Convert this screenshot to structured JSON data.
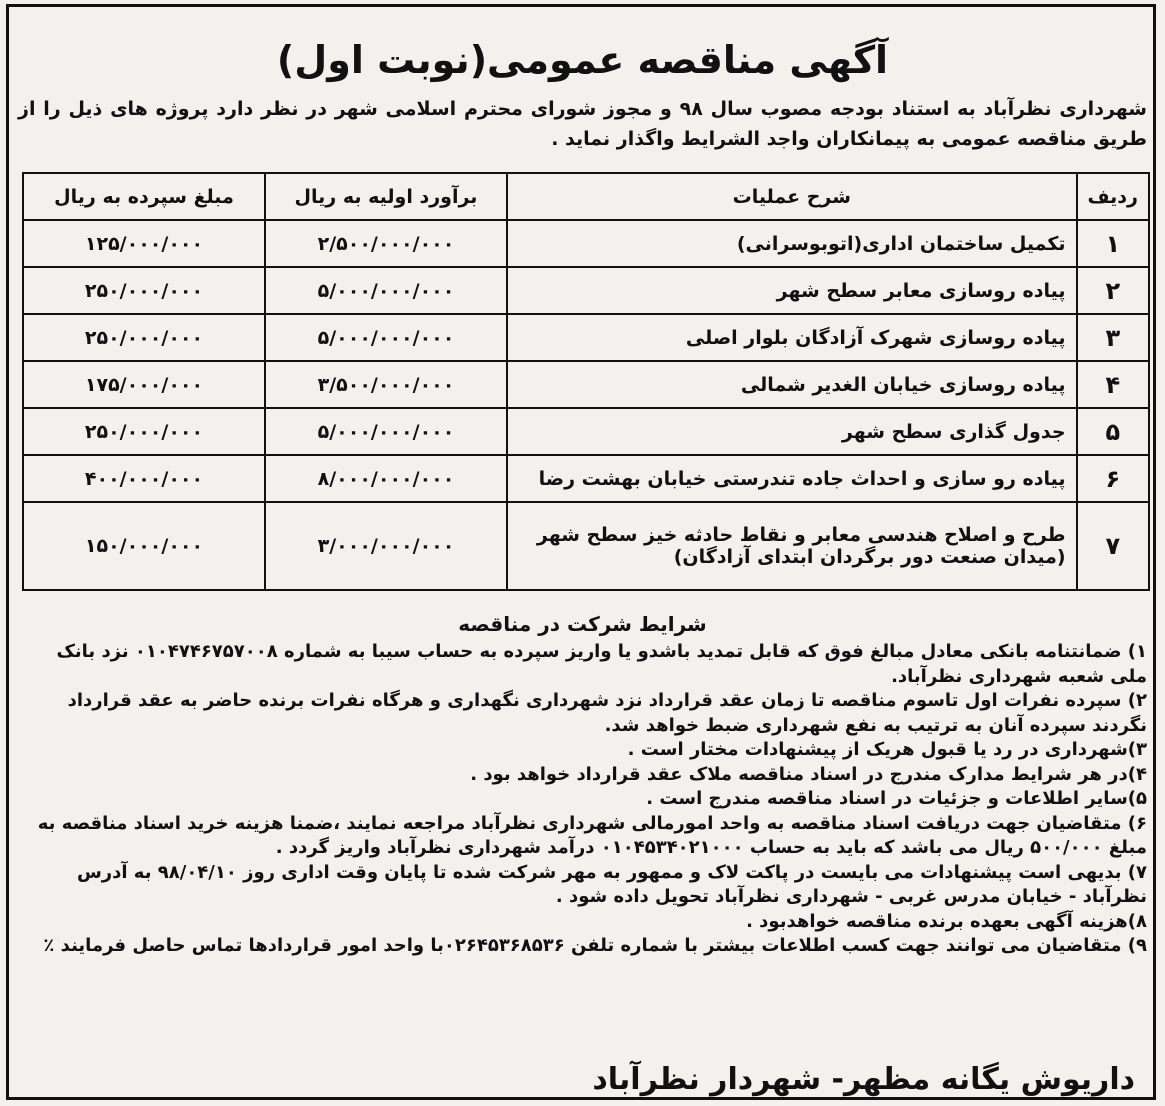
{
  "title": "آگهی مناقصه عمومی(نوبت اول)",
  "intro": "شهرداری نظرآباد به استناد بودجه مصوب سال ۹۸ و مجوز شورای محترم اسلامی شهر در نظر دارد پروژه های ذیل را از طریق مناقصه عمومی به پیمانکاران واجد الشرایط واگذار نماید .",
  "table": {
    "headers": [
      "ردیف",
      "شرح عملیات",
      "برآورد اولیه به ریال",
      "مبلغ سپرده به ریال"
    ],
    "rows": [
      {
        "idx": "۱",
        "desc": "تکمیل ساختمان اداری(اتوبوسرانی)",
        "estimate": "۲/۵۰۰/۰۰۰/۰۰۰",
        "deposit": "۱۲۵/۰۰۰/۰۰۰"
      },
      {
        "idx": "۲",
        "desc": "پیاده روسازی معابر سطح شهر",
        "estimate": "۵/۰۰۰/۰۰۰/۰۰۰",
        "deposit": "۲۵۰/۰۰۰/۰۰۰"
      },
      {
        "idx": "۳",
        "desc": "پیاده روسازی شهرک آزادگان بلوار اصلی",
        "estimate": "۵/۰۰۰/۰۰۰/۰۰۰",
        "deposit": "۲۵۰/۰۰۰/۰۰۰"
      },
      {
        "idx": "۴",
        "desc": "پیاده روسازی خیابان الغدیر شمالی",
        "estimate": "۳/۵۰۰/۰۰۰/۰۰۰",
        "deposit": "۱۷۵/۰۰۰/۰۰۰"
      },
      {
        "idx": "۵",
        "desc": "جدول گذاری سطح شهر",
        "estimate": "۵/۰۰۰/۰۰۰/۰۰۰",
        "deposit": "۲۵۰/۰۰۰/۰۰۰"
      },
      {
        "idx": "۶",
        "desc": "پیاده رو سازی و احداث جاده تندرستی خیابان بهشت رضا",
        "estimate": "۸/۰۰۰/۰۰۰/۰۰۰",
        "deposit": "۴۰۰/۰۰۰/۰۰۰"
      },
      {
        "idx": "۷",
        "desc": "طرح و اصلاح هندسی معابر و نقاط حادثه خیز سطح شهر",
        "desc2": "(میدان صنعت دور برگردان ابتدای آزادگان)",
        "estimate": "۳/۰۰۰/۰۰۰/۰۰۰",
        "deposit": "۱۵۰/۰۰۰/۰۰۰"
      }
    ]
  },
  "conditions_title": "شرایط شرکت در مناقصه",
  "conditions": [
    "۱) ضمانتنامه بانکی معادل مبالغ فوق که قابل تمدید باشدو یا واریز سپرده به حساب سیبا به شماره ۰۱۰۴۷۴۶۷۵۷۰۰۸ نزد بانک ملی شعبه شهرداری نظرآباد.",
    "۲) سپرده نفرات اول تاسوم مناقصه تا زمان عقد قرارداد نزد شهرداری نگهداری و هرگاه نفرات برنده حاضر به عقد قرارداد نگردند سپرده آنان به ترتیب به نفع شهرداری ضبط خواهد شد.",
    "۳)شهرداری در رد یا قبول هریک از پیشنهادات مختار است .",
    "۴)در هر شرایط مدارک مندرج در اسناد مناقصه ملاک عقد قرارداد خواهد بود .",
    "۵)سایر اطلاعات و جزئیات در اسناد مناقصه مندرج است .",
    "۶) متقاضیان جهت دریافت اسناد مناقصه به واحد امورمالی شهرداری نظرآباد مراجعه نمایند ،ضمنا هزینه خرید اسناد مناقصه به مبلغ ۵۰۰/۰۰۰ ریال می باشد که باید به حساب ۰۱۰۴۵۳۴۰۲۱۰۰۰ درآمد شهرداری نظرآباد واریز گردد .",
    "۷) بدیهی است پیشنهادات می بایست در پاکت لاک و ممهور به مهر شرکت شده تا پایان وقت اداری روز ۹۸/۰۴/۱۰ به آدرس نظرآباد - خیابان مدرس غربی - شهرداری نظرآباد تحویل داده شود .",
    "۸)هزینه آگهی بعهده برنده مناقصه خواهدبود .",
    "۹) متقاضیان می توانند جهت کسب اطلاعات بیشتر با شماره تلفن ۰۲۶۴۵۳۶۸۵۳۶با واحد امور قراردادها تماس حاصل فرمایند ٪"
  ],
  "signature": "داریوش یگانه مظهر- شهردار نظرآباد"
}
